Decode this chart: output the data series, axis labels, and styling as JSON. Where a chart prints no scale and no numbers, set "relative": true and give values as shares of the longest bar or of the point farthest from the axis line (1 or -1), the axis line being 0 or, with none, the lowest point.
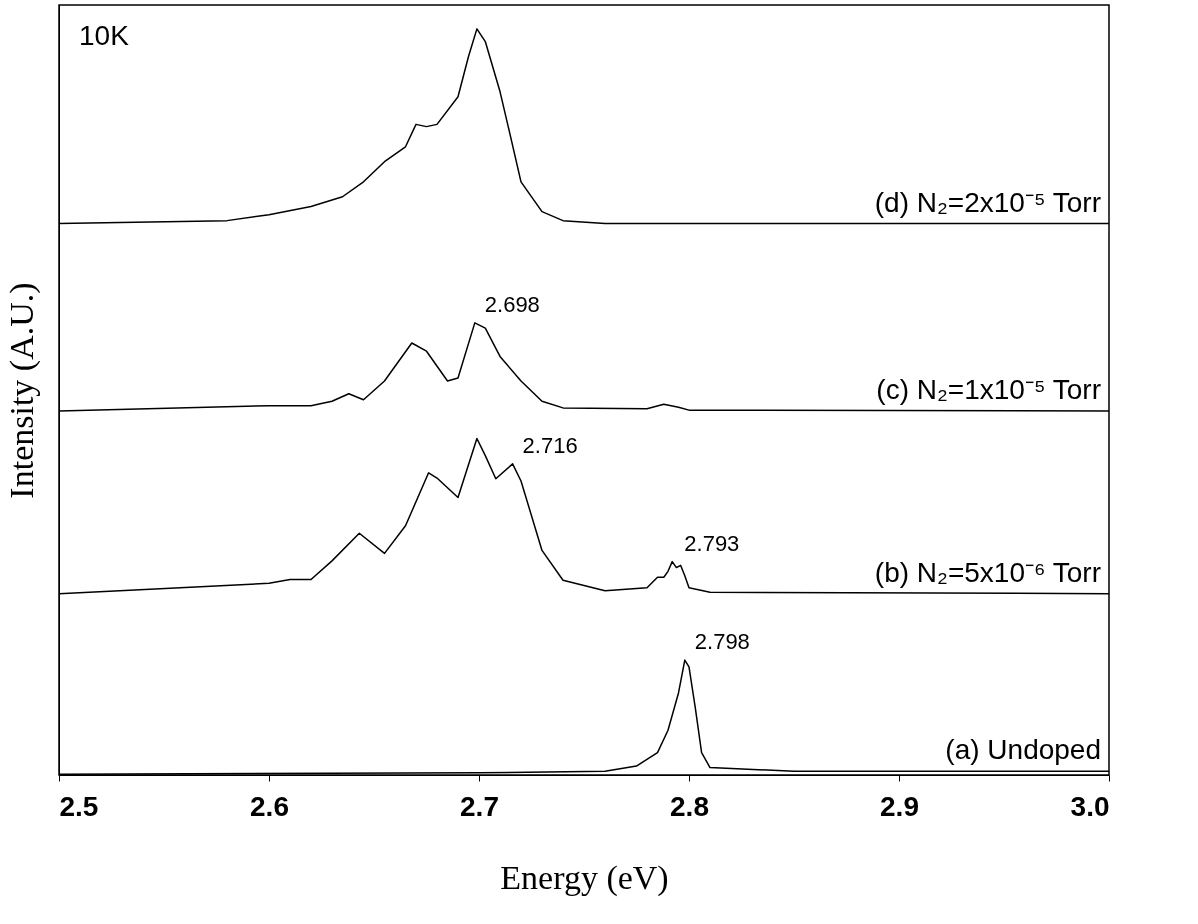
{
  "chart_data": {
    "type": "line",
    "relative": true,
    "xlabel": "Energy (eV)",
    "ylabel": "Intensity (A.U.)",
    "xlim": [
      2.5,
      3.0
    ],
    "xticks": [
      2.5,
      2.6,
      2.7,
      2.8,
      2.9,
      {
        "value": 3.0,
        "label": "3.0"
      }
    ],
    "grid": false,
    "marker": "none",
    "line_style": "solid",
    "annotations": [
      "10K",
      {
        "text": "2.698",
        "x": 2.698,
        "y": 0.606
      },
      {
        "text": "2.716",
        "x": 2.716,
        "y": 0.417
      },
      {
        "text": "2.793",
        "x": 2.793,
        "y": 0.286
      },
      {
        "text": "2.798",
        "x": 2.798,
        "y": 0.154
      }
    ],
    "series": [
      {
        "name": "(d)  N₂=2x10⁻⁵ Torr",
        "color": "#000000",
        "x": [
          2.5,
          2.58,
          2.6,
          2.62,
          2.635,
          2.645,
          2.655,
          2.665,
          2.67,
          2.675,
          2.68,
          2.69,
          2.695,
          2.699,
          2.703,
          2.71,
          2.715,
          2.72,
          2.73,
          2.74,
          2.76,
          3.0
        ],
        "values": [
          0.739,
          0.743,
          0.751,
          0.762,
          0.775,
          0.795,
          0.822,
          0.842,
          0.872,
          0.869,
          0.872,
          0.909,
          0.963,
          1.0,
          0.983,
          0.916,
          0.856,
          0.795,
          0.755,
          0.743,
          0.739,
          0.739
        ]
      },
      {
        "name": "(c)  N₂=1x10⁻⁵ Torr",
        "color": "#000000",
        "x": [
          2.5,
          2.6,
          2.62,
          2.63,
          2.638,
          2.645,
          2.655,
          2.668,
          2.675,
          2.685,
          2.69,
          2.698,
          2.703,
          2.71,
          2.72,
          2.73,
          2.74,
          2.78,
          2.788,
          2.795,
          2.8,
          3.0
        ],
        "values": [
          0.488,
          0.495,
          0.495,
          0.501,
          0.511,
          0.503,
          0.528,
          0.579,
          0.568,
          0.528,
          0.532,
          0.606,
          0.599,
          0.561,
          0.528,
          0.501,
          0.492,
          0.491,
          0.497,
          0.493,
          0.489,
          0.488
        ]
      },
      {
        "name": "(b)  N₂=5x10⁻⁶ Torr",
        "color": "#000000",
        "x": [
          2.5,
          2.6,
          2.61,
          2.62,
          2.63,
          2.643,
          2.655,
          2.665,
          2.676,
          2.68,
          2.69,
          2.699,
          2.703,
          2.708,
          2.716,
          2.72,
          2.73,
          2.74,
          2.76,
          2.78,
          2.785,
          2.788,
          2.79,
          2.792,
          2.794,
          2.796,
          2.798,
          2.8,
          2.81,
          3.0
        ],
        "values": [
          0.243,
          0.257,
          0.262,
          0.262,
          0.287,
          0.324,
          0.297,
          0.334,
          0.405,
          0.398,
          0.372,
          0.451,
          0.428,
          0.397,
          0.417,
          0.394,
          0.301,
          0.261,
          0.247,
          0.251,
          0.265,
          0.265,
          0.273,
          0.286,
          0.278,
          0.281,
          0.267,
          0.251,
          0.245,
          0.243
        ]
      },
      {
        "name": "(a)  Undoped",
        "color": "#000000",
        "x": [
          2.5,
          2.7,
          2.76,
          2.775,
          2.785,
          2.79,
          2.795,
          2.798,
          2.8,
          2.803,
          2.806,
          2.81,
          2.85,
          3.0
        ],
        "values": [
          0.001,
          0.003,
          0.005,
          0.012,
          0.03,
          0.06,
          0.11,
          0.154,
          0.145,
          0.09,
          0.03,
          0.01,
          0.005,
          0.005
        ]
      }
    ]
  }
}
